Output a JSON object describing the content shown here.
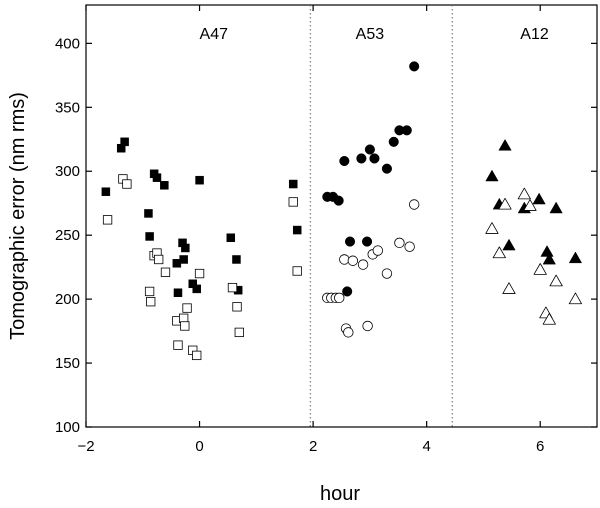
{
  "chart_data": {
    "type": "scatter",
    "title": "",
    "xlabel": "hour",
    "ylabel": "Tomographic error (nm rms)",
    "xlim": [
      -2,
      7
    ],
    "ylim": [
      100,
      430
    ],
    "xticks": [
      -2,
      0,
      2,
      4,
      6
    ],
    "yticks": [
      100,
      150,
      200,
      250,
      300,
      350,
      400
    ],
    "grid": false,
    "dividers": [
      1.95,
      4.45
    ],
    "regions": [
      {
        "label": "A47",
        "x": 0.25
      },
      {
        "label": "A53",
        "x": 3.0
      },
      {
        "label": "A12",
        "x": 5.9
      }
    ],
    "series": [
      {
        "name": "A47 filled",
        "marker": "square",
        "filled": true,
        "points": [
          [
            -1.65,
            284
          ],
          [
            -1.38,
            318
          ],
          [
            -1.32,
            323
          ],
          [
            -0.9,
            267
          ],
          [
            -0.88,
            249
          ],
          [
            -0.8,
            298
          ],
          [
            -0.75,
            295
          ],
          [
            -0.62,
            289
          ],
          [
            -0.4,
            228
          ],
          [
            -0.38,
            205
          ],
          [
            -0.3,
            244
          ],
          [
            -0.28,
            231
          ],
          [
            -0.25,
            240
          ],
          [
            -0.12,
            212
          ],
          [
            -0.05,
            208
          ],
          [
            0.0,
            293
          ],
          [
            0.55,
            248
          ],
          [
            0.65,
            231
          ],
          [
            0.68,
            207
          ],
          [
            1.65,
            290
          ],
          [
            1.72,
            254
          ]
        ]
      },
      {
        "name": "A47 open",
        "marker": "square",
        "filled": false,
        "points": [
          [
            -1.62,
            262
          ],
          [
            -1.35,
            294
          ],
          [
            -1.28,
            290
          ],
          [
            -0.88,
            206
          ],
          [
            -0.86,
            198
          ],
          [
            -0.8,
            234
          ],
          [
            -0.75,
            236
          ],
          [
            -0.72,
            231
          ],
          [
            -0.6,
            221
          ],
          [
            -0.4,
            183
          ],
          [
            -0.38,
            164
          ],
          [
            -0.28,
            185
          ],
          [
            -0.26,
            179
          ],
          [
            -0.22,
            193
          ],
          [
            -0.12,
            160
          ],
          [
            -0.05,
            156
          ],
          [
            0.0,
            220
          ],
          [
            0.58,
            209
          ],
          [
            0.66,
            194
          ],
          [
            0.7,
            174
          ],
          [
            1.65,
            276
          ],
          [
            1.72,
            222
          ]
        ]
      },
      {
        "name": "A53 filled",
        "marker": "circle",
        "filled": true,
        "points": [
          [
            2.25,
            280
          ],
          [
            2.35,
            280
          ],
          [
            2.45,
            277
          ],
          [
            2.55,
            308
          ],
          [
            2.6,
            206
          ],
          [
            2.65,
            245
          ],
          [
            2.85,
            310
          ],
          [
            2.95,
            245
          ],
          [
            3.0,
            317
          ],
          [
            3.08,
            310
          ],
          [
            3.3,
            302
          ],
          [
            3.42,
            323
          ],
          [
            3.52,
            332
          ],
          [
            3.65,
            332
          ],
          [
            3.78,
            382
          ]
        ]
      },
      {
        "name": "A53 open",
        "marker": "circle",
        "filled": false,
        "points": [
          [
            2.25,
            201
          ],
          [
            2.32,
            201
          ],
          [
            2.4,
            201
          ],
          [
            2.46,
            201
          ],
          [
            2.55,
            231
          ],
          [
            2.58,
            177
          ],
          [
            2.62,
            174
          ],
          [
            2.7,
            230
          ],
          [
            2.88,
            227
          ],
          [
            2.96,
            179
          ],
          [
            3.05,
            235
          ],
          [
            3.14,
            238
          ],
          [
            3.3,
            220
          ],
          [
            3.52,
            244
          ],
          [
            3.7,
            241
          ],
          [
            3.78,
            274
          ]
        ]
      },
      {
        "name": "A12 filled",
        "marker": "triangle",
        "filled": true,
        "points": [
          [
            5.15,
            296
          ],
          [
            5.28,
            274
          ],
          [
            5.38,
            320
          ],
          [
            5.45,
            242
          ],
          [
            5.72,
            271
          ],
          [
            5.98,
            278
          ],
          [
            6.12,
            237
          ],
          [
            6.16,
            231
          ],
          [
            6.28,
            271
          ],
          [
            6.62,
            232
          ]
        ]
      },
      {
        "name": "A12 open",
        "marker": "triangle",
        "filled": false,
        "points": [
          [
            5.15,
            255
          ],
          [
            5.28,
            236
          ],
          [
            5.38,
            274
          ],
          [
            5.45,
            208
          ],
          [
            5.72,
            282
          ],
          [
            5.82,
            273
          ],
          [
            6.0,
            223
          ],
          [
            6.1,
            189
          ],
          [
            6.16,
            184
          ],
          [
            6.28,
            214
          ],
          [
            6.62,
            200
          ]
        ]
      }
    ]
  }
}
